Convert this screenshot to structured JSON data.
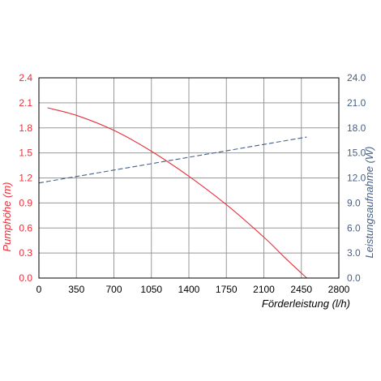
{
  "chart_data": {
    "type": "line",
    "xlabel": "Förderleistung (l/h)",
    "ylabel_left": "Pumphöhe (m)",
    "ylabel_right": "Leistungsaufnahme (W)",
    "xlim": [
      0,
      2800
    ],
    "ylim_left": [
      0,
      2.4
    ],
    "ylim_right": [
      0,
      24
    ],
    "grid": true,
    "x_ticks": [
      "0",
      "350",
      "700",
      "1050",
      "1400",
      "1750",
      "2100",
      "2450",
      "2800"
    ],
    "y_left_ticks": [
      "0.0",
      "0.3",
      "0.6",
      "0.9",
      "1.2",
      "1.5",
      "1.8",
      "2.1",
      "2.4"
    ],
    "y_right_ticks": [
      "0.0",
      "3.0",
      "6.0",
      "9.0",
      "12.0",
      "15.0",
      "18.0",
      "21.0",
      "24.0"
    ],
    "series": [
      {
        "axis": "left",
        "color": "#e8303a",
        "style": "solid",
        "x": [
          80,
          350,
          700,
          1050,
          1400,
          1750,
          2100,
          2300,
          2500
        ],
        "y": [
          2.04,
          1.95,
          1.77,
          1.52,
          1.22,
          0.88,
          0.49,
          0.24,
          0.0
        ]
      },
      {
        "axis": "right",
        "color": "#44608a",
        "style": "dashed",
        "x": [
          0,
          2500
        ],
        "y": [
          11.4,
          16.9
        ]
      }
    ]
  },
  "colors": {
    "left_axis": "#e8303a",
    "right_axis": "#44608a",
    "grid": "#999999",
    "frame": "#000000"
  }
}
